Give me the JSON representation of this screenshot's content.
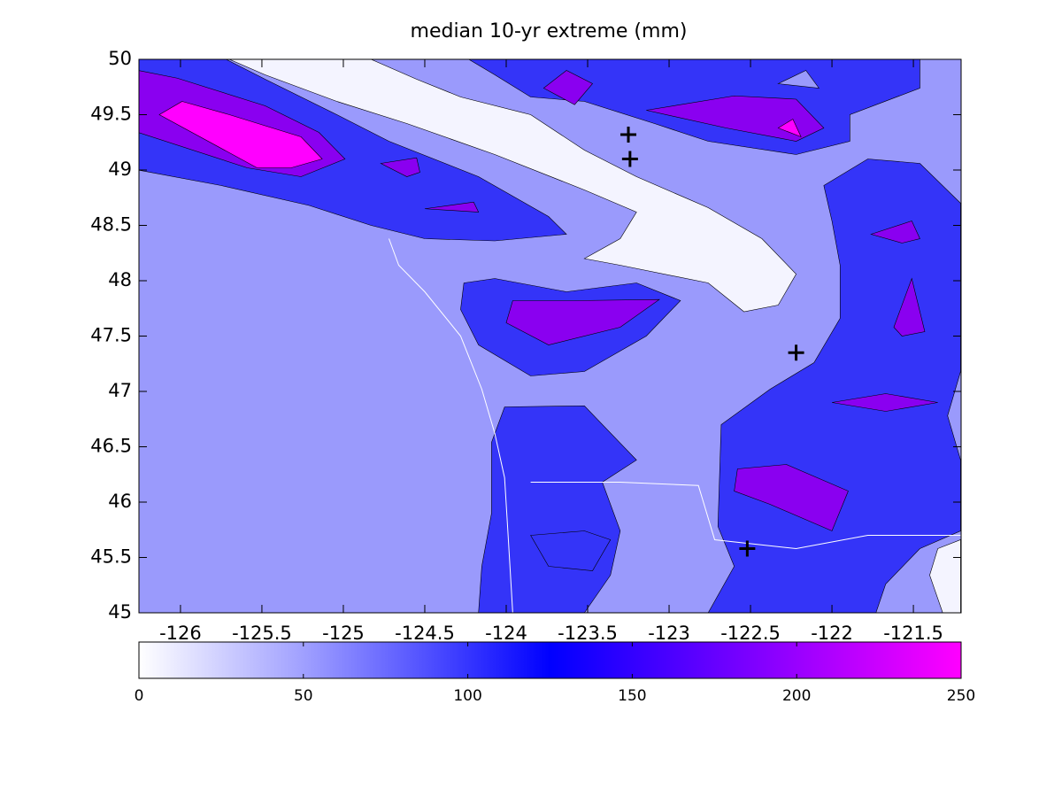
{
  "chart_data": {
    "type": "contour",
    "title": "median 10-yr extreme (mm)",
    "xlim": [
      -126.255,
      -121.207
    ],
    "ylim": [
      45,
      50
    ],
    "xticks": [
      -126,
      -125.5,
      -125,
      -124.5,
      -124,
      -123.5,
      -123,
      -122.5,
      -122,
      -121.5
    ],
    "yticks": [
      45,
      45.5,
      46,
      46.5,
      47,
      47.5,
      48,
      48.5,
      49,
      49.5,
      50
    ],
    "clim": [
      0,
      250
    ],
    "cticks": [
      0,
      50,
      100,
      150,
      200,
      250
    ],
    "colormap": [
      {
        "value": 0,
        "color": "#ffffff"
      },
      {
        "value": 50,
        "color": "#a0a0ff"
      },
      {
        "value": 125,
        "color": "#0000ff"
      },
      {
        "value": 250,
        "color": "#ff00ff"
      }
    ],
    "band_colors": [
      "#f4f4ff",
      "#9a9afc",
      "#3434f8",
      "#8a00f0",
      "#ff00ff"
    ],
    "contours": [
      {
        "level": 50,
        "points": [
          [
            -126.255,
            45
          ],
          [
            -121.207,
            45
          ],
          [
            -121.207,
            50
          ],
          [
            -126.255,
            50
          ]
        ]
      },
      {
        "level": 100,
        "points": [
          [
            -126.26,
            50
          ],
          [
            -125.72,
            50
          ],
          [
            -125.48,
            49.82
          ],
          [
            -125.04,
            49.5
          ],
          [
            -124.72,
            49.26
          ],
          [
            -124.17,
            48.94
          ],
          [
            -123.74,
            48.58
          ],
          [
            -123.63,
            48.42
          ],
          [
            -124.07,
            48.36
          ],
          [
            -124.5,
            48.38
          ],
          [
            -124.83,
            48.5
          ],
          [
            -125.21,
            48.68
          ],
          [
            -125.75,
            48.86
          ],
          [
            -126.26,
            49
          ]
        ]
      },
      {
        "level": 150,
        "points": [
          [
            -126.26,
            49.9
          ],
          [
            -126.02,
            49.83
          ],
          [
            -125.48,
            49.58
          ],
          [
            -125.15,
            49.34
          ],
          [
            -124.99,
            49.1
          ],
          [
            -125.26,
            48.94
          ],
          [
            -125.59,
            49.02
          ],
          [
            -126.26,
            49.34
          ]
        ]
      },
      {
        "level": 200,
        "points": [
          [
            -125.99,
            49.62
          ],
          [
            -125.7,
            49.5
          ],
          [
            -125.26,
            49.3
          ],
          [
            -125.13,
            49.1
          ],
          [
            -125.32,
            49.02
          ],
          [
            -125.53,
            49.02
          ],
          [
            -126.13,
            49.5
          ]
        ]
      },
      {
        "level": 150,
        "points": [
          [
            -124.77,
            49.06
          ],
          [
            -124.55,
            49.11
          ],
          [
            -124.53,
            48.98
          ],
          [
            -124.61,
            48.94
          ]
        ]
      },
      {
        "level": 150,
        "points": [
          [
            -124.5,
            48.65
          ],
          [
            -124.2,
            48.71
          ],
          [
            -124.17,
            48.62
          ]
        ]
      },
      {
        "level": 0,
        "points": [
          [
            -125.7,
            50
          ],
          [
            -124.83,
            50
          ],
          [
            -124.55,
            49.82
          ],
          [
            -124.28,
            49.66
          ],
          [
            -123.85,
            49.5
          ],
          [
            -123.52,
            49.18
          ],
          [
            -123.2,
            48.94
          ],
          [
            -122.76,
            48.66
          ],
          [
            -122.43,
            48.38
          ],
          [
            -122.22,
            48.06
          ],
          [
            -122.33,
            47.78
          ],
          [
            -122.54,
            47.72
          ],
          [
            -122.76,
            47.98
          ],
          [
            -123.3,
            48.14
          ],
          [
            -123.52,
            48.2
          ],
          [
            -123.3,
            48.38
          ],
          [
            -123.2,
            48.62
          ],
          [
            -123.52,
            48.82
          ],
          [
            -124.07,
            49.14
          ],
          [
            -124.61,
            49.42
          ],
          [
            -125.04,
            49.62
          ],
          [
            -125.48,
            49.86
          ]
        ]
      },
      {
        "level": 100,
        "points": [
          [
            -124.23,
            50
          ],
          [
            -121.46,
            50
          ],
          [
            -121.46,
            49.74
          ],
          [
            -121.89,
            49.5
          ],
          [
            -121.89,
            49.26
          ],
          [
            -122.22,
            49.14
          ],
          [
            -122.76,
            49.26
          ],
          [
            -123.09,
            49.42
          ],
          [
            -123.52,
            49.62
          ],
          [
            -123.85,
            49.66
          ],
          [
            -124.07,
            49.86
          ]
        ]
      },
      {
        "level": 150,
        "points": [
          [
            -123.77,
            49.74
          ],
          [
            -123.63,
            49.9
          ],
          [
            -123.47,
            49.78
          ],
          [
            -123.58,
            49.59
          ]
        ]
      },
      {
        "level": 150,
        "points": [
          [
            -123.14,
            49.54
          ],
          [
            -122.6,
            49.67
          ],
          [
            -122.22,
            49.64
          ],
          [
            -122.05,
            49.38
          ],
          [
            -122.22,
            49.26
          ],
          [
            -122.65,
            49.38
          ]
        ]
      },
      {
        "level": 200,
        "points": [
          [
            -122.33,
            49.38
          ],
          [
            -122.24,
            49.46
          ],
          [
            -122.19,
            49.3
          ]
        ]
      },
      {
        "level": 50,
        "points": [
          [
            -122.33,
            49.78
          ],
          [
            -122.16,
            49.9
          ],
          [
            -122.08,
            49.74
          ]
        ]
      },
      {
        "level": 100,
        "points": [
          [
            -122.05,
            48.86
          ],
          [
            -121.78,
            49.1
          ],
          [
            -121.46,
            49.06
          ],
          [
            -121.21,
            48.7
          ],
          [
            -121.21,
            47.18
          ],
          [
            -121.29,
            46.78
          ],
          [
            -121.21,
            46.38
          ],
          [
            -121.21,
            45.74
          ],
          [
            -121.46,
            45.58
          ],
          [
            -121.67,
            45.26
          ],
          [
            -121.73,
            45
          ],
          [
            -122.76,
            45
          ],
          [
            -122.6,
            45.42
          ],
          [
            -122.7,
            45.78
          ],
          [
            -122.68,
            46.7
          ],
          [
            -122.38,
            47.02
          ],
          [
            -122.11,
            47.26
          ],
          [
            -121.95,
            47.66
          ],
          [
            -121.95,
            48.14
          ],
          [
            -122,
            48.54
          ]
        ]
      },
      {
        "level": 150,
        "points": [
          [
            -121.76,
            48.42
          ],
          [
            -121.51,
            48.54
          ],
          [
            -121.46,
            48.38
          ],
          [
            -121.57,
            48.34
          ]
        ]
      },
      {
        "level": 150,
        "points": [
          [
            -121.62,
            47.58
          ],
          [
            -121.51,
            48.02
          ],
          [
            -121.43,
            47.54
          ],
          [
            -121.57,
            47.5
          ]
        ]
      },
      {
        "level": 150,
        "points": [
          [
            -122,
            46.9
          ],
          [
            -121.67,
            46.98
          ],
          [
            -121.35,
            46.9
          ],
          [
            -121.67,
            46.82
          ]
        ]
      },
      {
        "level": 150,
        "points": [
          [
            -122.58,
            46.3
          ],
          [
            -122.28,
            46.34
          ],
          [
            -121.9,
            46.1
          ],
          [
            -122,
            45.74
          ],
          [
            -122.38,
            45.98
          ],
          [
            -122.6,
            46.1
          ]
        ]
      },
      {
        "level": 0,
        "points": [
          [
            -121.35,
            45.58
          ],
          [
            -121.21,
            45.66
          ],
          [
            -121.21,
            45
          ],
          [
            -121.32,
            45
          ],
          [
            -121.4,
            45.34
          ]
        ]
      },
      {
        "level": 100,
        "points": [
          [
            -124.26,
            47.98
          ],
          [
            -124.07,
            48.02
          ],
          [
            -123.63,
            47.9
          ],
          [
            -123.2,
            47.98
          ],
          [
            -122.93,
            47.82
          ],
          [
            -123.14,
            47.5
          ],
          [
            -123.52,
            47.18
          ],
          [
            -123.85,
            47.14
          ],
          [
            -124.17,
            47.42
          ],
          [
            -124.28,
            47.74
          ]
        ]
      },
      {
        "level": 150,
        "points": [
          [
            -123.96,
            47.82
          ],
          [
            -123.58,
            47.82
          ],
          [
            -123.06,
            47.83
          ],
          [
            -123.3,
            47.58
          ],
          [
            -123.74,
            47.42
          ],
          [
            -124,
            47.62
          ]
        ]
      },
      {
        "level": 100,
        "points": [
          [
            -124.01,
            46.86
          ],
          [
            -123.52,
            46.87
          ],
          [
            -123.2,
            46.38
          ],
          [
            -123.41,
            46.18
          ],
          [
            -123.3,
            45.74
          ],
          [
            -123.36,
            45.34
          ],
          [
            -123.52,
            45
          ],
          [
            -124.17,
            45
          ],
          [
            -124.15,
            45.42
          ],
          [
            -124.09,
            45.9
          ],
          [
            -124.09,
            46.54
          ]
        ]
      },
      {
        "level": 100,
        "points": [
          [
            -123.85,
            45.7
          ],
          [
            -123.52,
            45.74
          ],
          [
            -123.36,
            45.66
          ],
          [
            -123.47,
            45.38
          ],
          [
            -123.74,
            45.42
          ]
        ]
      }
    ],
    "coastline": [
      [
        -124.72,
        48.38
      ],
      [
        -124.66,
        48.14
      ],
      [
        -124.5,
        47.9
      ],
      [
        -124.28,
        47.5
      ],
      [
        -124.15,
        47.02
      ],
      [
        -124.07,
        46.62
      ],
      [
        -124.01,
        46.22
      ],
      [
        -123.99,
        45.74
      ],
      [
        -123.96,
        45
      ]
    ],
    "border": [
      [
        -123.85,
        46.18
      ],
      [
        -123.3,
        46.18
      ],
      [
        -122.82,
        46.15
      ],
      [
        -122.72,
        45.66
      ],
      [
        -122.22,
        45.58
      ],
      [
        -121.78,
        45.7
      ],
      [
        -121.21,
        45.7
      ]
    ],
    "markers": {
      "x": [
        -123.25,
        -123.24,
        -122.22,
        -122.52
      ],
      "y": [
        49.32,
        49.1,
        47.35,
        45.58
      ]
    }
  }
}
